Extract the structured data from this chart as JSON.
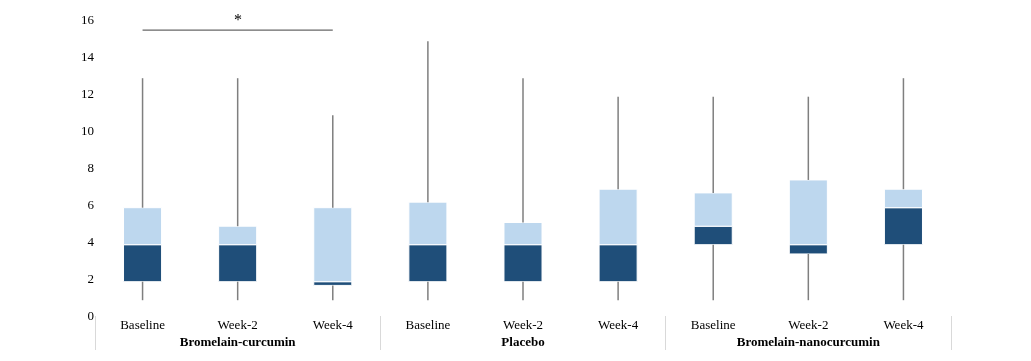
{
  "chart_data": {
    "type": "box",
    "categories": [
      "Baseline",
      "Week-2",
      "Week-4",
      "Baseline",
      "Week-2",
      "Week-4",
      "Baseline",
      "Week-2",
      "Week-4"
    ],
    "boxes": [
      {
        "low": 0.8,
        "q1": 1.8,
        "median": 3.8,
        "q3": 5.8,
        "high": 12.8
      },
      {
        "low": 0.8,
        "q1": 1.8,
        "median": 3.8,
        "q3": 4.8,
        "high": 12.8
      },
      {
        "low": 0.8,
        "q1": 1.6,
        "median": 1.8,
        "q3": 5.8,
        "high": 10.8
      },
      {
        "low": 0.8,
        "q1": 1.8,
        "median": 3.8,
        "q3": 6.1,
        "high": 14.8
      },
      {
        "low": 0.8,
        "q1": 1.8,
        "median": 3.8,
        "q3": 5.0,
        "high": 12.8
      },
      {
        "low": 0.8,
        "q1": 1.8,
        "median": 3.8,
        "q3": 6.8,
        "high": 11.8
      },
      {
        "low": 0.8,
        "q1": 3.8,
        "median": 4.8,
        "q3": 6.6,
        "high": 11.8
      },
      {
        "low": 0.8,
        "q1": 3.3,
        "median": 3.8,
        "q3": 7.3,
        "high": 11.8
      },
      {
        "low": 0.8,
        "q1": 3.8,
        "median": 5.8,
        "q3": 6.8,
        "high": 12.8
      }
    ],
    "color": "#1f4e79",
    "annotations": [
      "*",
      "Bromelain-curcumin",
      "Placebo",
      "Bromelain-nanocurcumin"
    ],
    "ylim": [
      0,
      16
    ],
    "yticks": [
      0,
      2,
      4,
      6,
      8,
      10,
      12,
      14,
      16
    ],
    "tick_labels": true
  }
}
